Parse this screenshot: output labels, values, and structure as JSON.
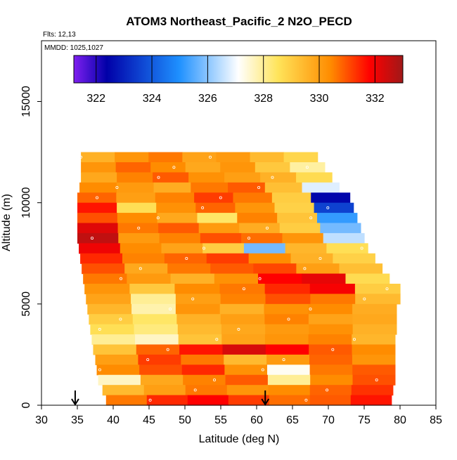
{
  "chart_data": {
    "type": "heatmap",
    "title": "ATOM3 Northeast_Pacific_2 N2O_PECD",
    "annotations": {
      "flights": "Flts: 12,13",
      "dates": "MMDD: 1025,1027"
    },
    "xlabel": "Latitude (deg N)",
    "ylabel": "Altitude (m)",
    "xlim": [
      30,
      85
    ],
    "ylim": [
      0,
      18000
    ],
    "x_ticks": [
      "30",
      "35",
      "40",
      "45",
      "50",
      "55",
      "60",
      "65",
      "70",
      "75",
      "80",
      "85"
    ],
    "y_ticks": [
      "0",
      "5000",
      "10000",
      "15000"
    ],
    "colorbar": {
      "range": [
        321.2,
        333
      ],
      "ticks": [
        "322",
        "324",
        "326",
        "328",
        "330",
        "332"
      ],
      "colors": [
        "#7f1ff0",
        "#0000a8",
        "#1e90ff",
        "#ffffff",
        "#ffe45a",
        "#ff8c00",
        "#ff0000",
        "#a01818"
      ]
    },
    "arrows_latitude": [
      34.7,
      61.2
    ],
    "layers": [
      {
        "alt": 12250,
        "lat_start": 35.5,
        "lat_end": 68.5,
        "values": [
          329.6,
          330.2,
          330.6,
          329.9,
          330.1,
          329.4,
          328.8
        ]
      },
      {
        "alt": 11750,
        "lat_start": 35.5,
        "lat_end": 69.5,
        "values": [
          330.2,
          330.8,
          330.4,
          329.8,
          330.2,
          329.1,
          327.9
        ]
      },
      {
        "alt": 11250,
        "lat_start": 35.5,
        "lat_end": 70.5,
        "values": [
          329.8,
          330.5,
          330.9,
          330.3,
          330.0,
          329.6,
          328.7
        ]
      },
      {
        "alt": 10750,
        "lat_start": 35.3,
        "lat_end": 71.5,
        "values": [
          330.4,
          330.1,
          329.7,
          330.6,
          330.9,
          329.3,
          326.8
        ]
      },
      {
        "alt": 10250,
        "lat_start": 35.0,
        "lat_end": 73.0,
        "values": [
          330.8,
          330.0,
          330.5,
          331.2,
          330.6,
          329.0,
          322.5
        ]
      },
      {
        "alt": 9750,
        "lat_start": 35.0,
        "lat_end": 73.5,
        "values": [
          331.6,
          328.6,
          330.3,
          330.8,
          330.2,
          328.9,
          323.6
        ]
      },
      {
        "alt": 9250,
        "lat_start": 35.0,
        "lat_end": 74.0,
        "values": [
          331.0,
          330.4,
          329.8,
          328.4,
          330.5,
          329.2,
          325.2
        ]
      },
      {
        "alt": 8750,
        "lat_start": 35.0,
        "lat_end": 74.5,
        "values": [
          332.2,
          330.6,
          330.9,
          330.1,
          329.7,
          329.0,
          325.8
        ]
      },
      {
        "alt": 8250,
        "lat_start": 35.0,
        "lat_end": 75.0,
        "values": [
          332.6,
          330.1,
          330.5,
          331.0,
          330.7,
          330.2,
          326.5
        ]
      },
      {
        "alt": 7750,
        "lat_start": 35.2,
        "lat_end": 75.5,
        "values": [
          332.0,
          330.4,
          329.9,
          329.0,
          325.8,
          329.5,
          328.6
        ]
      },
      {
        "alt": 7250,
        "lat_start": 35.4,
        "lat_end": 76.5,
        "values": [
          331.4,
          330.5,
          330.8,
          331.2,
          330.4,
          329.6,
          328.9
        ]
      },
      {
        "alt": 6750,
        "lat_start": 35.6,
        "lat_end": 77.5,
        "values": [
          331.0,
          329.8,
          330.6,
          330.9,
          331.1,
          330.0,
          329.3
        ]
      },
      {
        "alt": 6250,
        "lat_start": 35.8,
        "lat_end": 78.5,
        "values": [
          330.6,
          330.1,
          329.6,
          330.3,
          331.8,
          332.1,
          328.7
        ]
      },
      {
        "alt": 5750,
        "lat_start": 36.0,
        "lat_end": 80.0,
        "values": [
          330.2,
          329.1,
          330.4,
          330.6,
          331.4,
          331.9,
          329.0
        ]
      },
      {
        "alt": 5250,
        "lat_start": 36.2,
        "lat_end": 80.0,
        "values": [
          329.9,
          328.0,
          330.0,
          330.5,
          331.0,
          330.6,
          329.4
        ]
      },
      {
        "alt": 4750,
        "lat_start": 36.4,
        "lat_end": 79.5,
        "values": [
          329.5,
          327.8,
          330.2,
          329.6,
          330.3,
          330.4,
          329.7
        ]
      },
      {
        "alt": 4250,
        "lat_start": 36.6,
        "lat_end": 79.5,
        "values": [
          329.0,
          328.4,
          329.6,
          330.0,
          330.5,
          329.9,
          329.8
        ]
      },
      {
        "alt": 3750,
        "lat_start": 36.8,
        "lat_end": 79.5,
        "values": [
          328.6,
          328.2,
          329.4,
          329.8,
          330.1,
          330.3,
          329.6
        ]
      },
      {
        "alt": 3250,
        "lat_start": 37.0,
        "lat_end": 79.3,
        "values": [
          328.0,
          327.6,
          329.2,
          329.9,
          330.2,
          330.5,
          329.5
        ]
      },
      {
        "alt": 2750,
        "lat_start": 37.2,
        "lat_end": 79.3,
        "values": [
          329.2,
          330.8,
          331.6,
          332.3,
          331.8,
          330.9,
          330.4
        ]
      },
      {
        "alt": 2250,
        "lat_start": 37.5,
        "lat_end": 79.3,
        "values": [
          330.0,
          331.2,
          330.6,
          329.4,
          330.1,
          330.8,
          330.2
        ]
      },
      {
        "alt": 1750,
        "lat_start": 37.7,
        "lat_end": 79.3,
        "values": [
          330.4,
          331.0,
          331.4,
          330.3,
          327.2,
          330.6,
          330.9
        ]
      },
      {
        "alt": 1250,
        "lat_start": 37.9,
        "lat_end": 79.3,
        "values": [
          327.6,
          329.8,
          330.5,
          330.9,
          328.0,
          330.4,
          331.0
        ]
      },
      {
        "alt": 750,
        "lat_start": 38.5,
        "lat_end": 79.0,
        "values": [
          329.4,
          330.0,
          330.6,
          330.2,
          330.4,
          330.8,
          331.3
        ]
      },
      {
        "alt": 250,
        "lat_start": 39.0,
        "lat_end": 78.8,
        "values": [
          330.6,
          331.4,
          331.8,
          331.2,
          330.7,
          330.9,
          331.6
        ]
      }
    ]
  }
}
